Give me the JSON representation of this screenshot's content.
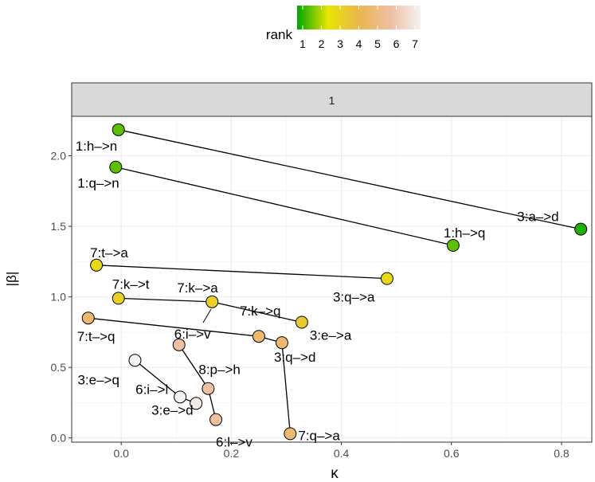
{
  "chart_data": {
    "type": "scatter",
    "facet_label": "1",
    "xlabel": "κ",
    "ylabel": "|β|",
    "xlim": [
      -0.09,
      0.855
    ],
    "ylim": [
      -0.03,
      2.28
    ],
    "x_ticks": [
      0.0,
      0.2,
      0.4,
      0.6,
      0.8
    ],
    "x_tick_labels": [
      "0.0",
      "0.2",
      "0.4",
      "0.6",
      "0.8"
    ],
    "y_ticks": [
      0.0,
      0.5,
      1.0,
      1.5,
      2.0
    ],
    "y_tick_labels": [
      "0.0",
      "0.5",
      "1.0",
      "1.5",
      "2.0"
    ],
    "legend": {
      "title": "rank",
      "placement": "top",
      "labels": [
        "1",
        "2",
        "3",
        "4",
        "5",
        "6",
        "7"
      ],
      "colors": [
        "#00a600",
        "#e6e600",
        "#eab64e",
        "#eebea0",
        "#f2f2f2"
      ]
    },
    "points": [
      {
        "label": "1:h–>n",
        "x": -0.005,
        "y": 2.185,
        "rank": 1.6
      },
      {
        "label": "1:q–>n",
        "x": -0.01,
        "y": 1.92,
        "rank": 1.6
      },
      {
        "label": "1:h–>q",
        "x": 0.603,
        "y": 1.365,
        "rank": 1.6
      },
      {
        "label": "3:a–>d",
        "x": 0.835,
        "y": 1.48,
        "rank": 1.2
      },
      {
        "label": "7:t–>a",
        "x": -0.045,
        "y": 1.225,
        "rank": 2.9
      },
      {
        "label": "3:q–>a",
        "x": 0.483,
        "y": 1.13,
        "rank": 2.9
      },
      {
        "label": "7:k–>t",
        "x": -0.005,
        "y": 0.99,
        "rank": 3.2
      },
      {
        "label": "7:k–>a",
        "x": 0.165,
        "y": 0.965,
        "rank": 3.2
      },
      {
        "label": "3:e–>a",
        "x": 0.328,
        "y": 0.82,
        "rank": 3.4
      },
      {
        "label": "7:k–>q",
        "x": 0.25,
        "y": 0.72,
        "rank": 4.6
      },
      {
        "label": "3:q–>d",
        "x": 0.292,
        "y": 0.675,
        "rank": 4.6
      },
      {
        "label": "7:t–>q",
        "x": -0.06,
        "y": 0.85,
        "rank": 4.6
      },
      {
        "label": "6:i–>v",
        "x": 0.105,
        "y": 0.66,
        "rank": 5.6
      },
      {
        "label": "8:p–>h",
        "x": 0.158,
        "y": 0.35,
        "rank": 5.6
      },
      {
        "label": "6:l–>v",
        "x": 0.172,
        "y": 0.13,
        "rank": 5.6
      },
      {
        "label": "7:q–>a",
        "x": 0.307,
        "y": 0.03,
        "rank": 4.6
      },
      {
        "label": "3:e–>q",
        "x": 0.025,
        "y": 0.55,
        "rank": 7
      },
      {
        "label": "6:i–>l",
        "x": 0.107,
        "y": 0.29,
        "rank": 7
      },
      {
        "label": "3:e–>d",
        "x": 0.136,
        "y": 0.245,
        "rank": 6.8
      }
    ],
    "segments": [
      [
        "1:h–>n",
        "3:a–>d"
      ],
      [
        "1:q–>n",
        "1:h–>q"
      ],
      [
        "7:t–>a",
        "3:q–>a"
      ],
      [
        "7:k–>t",
        "7:k–>a"
      ],
      [
        "7:k–>a",
        "3:e–>a"
      ],
      [
        "7:t–>q",
        "7:k–>q"
      ],
      [
        "7:k–>q",
        "3:q–>d"
      ],
      [
        "3:q–>d",
        "7:q–>a"
      ],
      [
        "6:i–>v",
        "8:p–>h"
      ],
      [
        "8:p–>h",
        "6:l–>v"
      ],
      [
        "3:e–>q",
        "6:i–>l"
      ],
      [
        "6:i–>l",
        "3:e–>d"
      ]
    ],
    "label_offsets": {
      "1:h–>n": [
        -54,
        26
      ],
      "1:q–>n": [
        -48,
        26
      ],
      "1:h–>q": [
        -12,
        -10
      ],
      "3:a–>d": [
        -80,
        -10
      ],
      "7:t–>a": [
        -8,
        -10
      ],
      "3:q–>a": [
        -68,
        29
      ],
      "7:k–>t": [
        -8,
        -12
      ],
      "7:k–>a": [
        -44,
        -12
      ],
      "3:e–>a": [
        10,
        22
      ],
      "7:k–>q": [
        -24,
        -26
      ],
      "3:q–>d": [
        -10,
        24
      ],
      "7:t–>q": [
        -14,
        29
      ],
      "6:i–>v": [
        -6,
        -8
      ],
      "8:p–>h": [
        -12,
        -18
      ],
      "6:l–>v": [
        0,
        34
      ],
      "7:q–>a": [
        10,
        8
      ],
      "3:e–>q": [
        -72,
        30
      ],
      "6:i–>l": [
        -56,
        -4
      ],
      "3:e–>d": [
        -56,
        14
      ]
    },
    "label_leaders": {
      "7:k–>q": [
        [
          265,
          388
        ],
        [
          255,
          405
        ]
      ]
    }
  }
}
